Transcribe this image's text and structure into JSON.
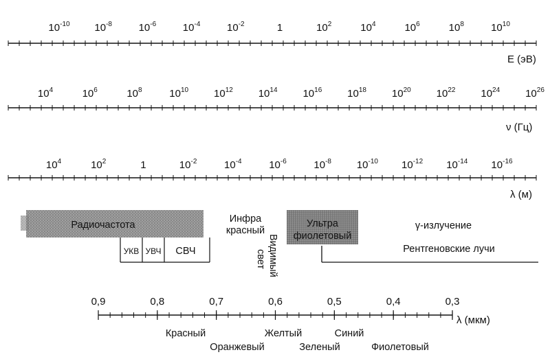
{
  "scales": [
    {
      "id": "energy",
      "unit": "E (эВ)",
      "ticks": [
        {
          "base": "10",
          "exp": "-10"
        },
        {
          "base": "10",
          "exp": "-8"
        },
        {
          "base": "10",
          "exp": "-6"
        },
        {
          "base": "10",
          "exp": "-4"
        },
        {
          "base": "10",
          "exp": "-2"
        },
        {
          "base": "1",
          "exp": ""
        },
        {
          "base": "10",
          "exp": "2"
        },
        {
          "base": "10",
          "exp": "4"
        },
        {
          "base": "10",
          "exp": "6"
        },
        {
          "base": "10",
          "exp": "8"
        },
        {
          "base": "10",
          "exp": "10"
        }
      ]
    },
    {
      "id": "frequency",
      "unit": "ν (Гц)",
      "ticks": [
        {
          "base": "10",
          "exp": "4"
        },
        {
          "base": "10",
          "exp": "6"
        },
        {
          "base": "10",
          "exp": "8"
        },
        {
          "base": "10",
          "exp": "10"
        },
        {
          "base": "10",
          "exp": "12"
        },
        {
          "base": "10",
          "exp": "14"
        },
        {
          "base": "10",
          "exp": "16"
        },
        {
          "base": "10",
          "exp": "18"
        },
        {
          "base": "10",
          "exp": "20"
        },
        {
          "base": "10",
          "exp": "22"
        },
        {
          "base": "10",
          "exp": "24"
        },
        {
          "base": "10",
          "exp": "26"
        }
      ]
    },
    {
      "id": "wavelength",
      "unit": "λ (м)",
      "ticks": [
        {
          "base": "10",
          "exp": "4"
        },
        {
          "base": "10",
          "exp": "2"
        },
        {
          "base": "1",
          "exp": ""
        },
        {
          "base": "10",
          "exp": "-2"
        },
        {
          "base": "10",
          "exp": "-4"
        },
        {
          "base": "10",
          "exp": "-6"
        },
        {
          "base": "10",
          "exp": "-8"
        },
        {
          "base": "10",
          "exp": "-10"
        },
        {
          "base": "10",
          "exp": "-12"
        },
        {
          "base": "10",
          "exp": "-14"
        },
        {
          "base": "10",
          "exp": "-16"
        }
      ]
    }
  ],
  "regions": {
    "radio": "Радиочастота",
    "ukv": "УКВ",
    "uvch": "УВЧ",
    "svch": "СВЧ",
    "infrared_1": "Инфра",
    "infrared_2": "красный",
    "visible_1": "Видимый",
    "visible_2": "свет",
    "ultraviolet_1": "Ультра",
    "ultraviolet_2": "фиолетовый",
    "gamma": "γ-излучение",
    "xray": "Рентгеновские лучи"
  },
  "micron_scale": {
    "unit": "λ (мкм)",
    "ticks": [
      "0,9",
      "0,8",
      "0,7",
      "0,6",
      "0,5",
      "0,4",
      "0,3"
    ]
  },
  "colors": {
    "red": "Красный",
    "orange": "Оранжевый",
    "yellow": "Желтый",
    "green": "Зеленый",
    "blue": "Синий",
    "violet": "Фиолетовый"
  }
}
